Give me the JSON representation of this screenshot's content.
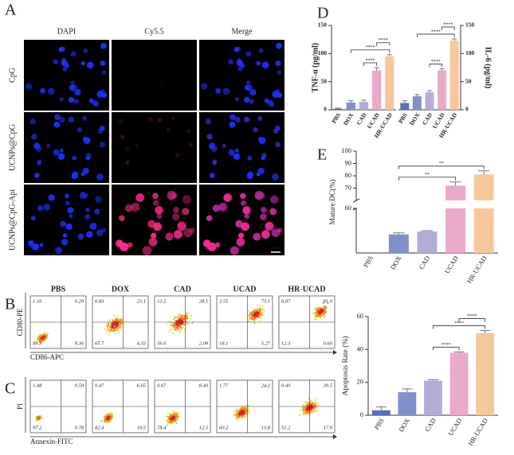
{
  "panel_labels": [
    "A",
    "B",
    "C",
    "D",
    "E",
    "F"
  ],
  "microscopy": {
    "columns": [
      "DAPI",
      "Cy5.5",
      "Merge"
    ],
    "rows": [
      "CpG",
      "UCNPs@CpG",
      "UCNPs@CpG-Apt"
    ],
    "scale_bar": "50 μm"
  },
  "flow": {
    "groups": [
      "PBS",
      "DOX",
      "CAD",
      "UCAD",
      "HR-UCAD"
    ],
    "panels": [
      {
        "y_label": "CD80-PE",
        "x_label": "CD86-APC",
        "quadrants": [
          [
            "1.16",
            "0.20",
            "89.3",
            "9.36"
          ],
          [
            "6.83",
            "23.1",
            "65.7",
            "4.33"
          ],
          [
            "13.2",
            "28.1",
            "56.6",
            "2.09"
          ],
          [
            "3.55",
            "73.1",
            "18.1",
            "5.27"
          ],
          [
            "6.07",
            "81.0",
            "12.3",
            "0.60"
          ]
        ]
      },
      {
        "y_label": "PI",
        "x_label": "Annexin-FITC",
        "quadrants": [
          [
            "1.48",
            "0.50",
            "97.2",
            "0.78"
          ],
          [
            "0.47",
            "6.65",
            "82.4",
            "10.5"
          ],
          [
            "0.67",
            "8.40",
            "78.4",
            "12.5"
          ],
          [
            "1.77",
            "24.2",
            "60.2",
            "13.8"
          ],
          [
            "0.40",
            "30.5",
            "51.2",
            "17.9"
          ]
        ]
      }
    ]
  },
  "chart_data": [
    {
      "type": "bar",
      "y_label": "TNF-α (pg/ml)",
      "y_axis": "left",
      "categories": [
        "PBS",
        "DOX",
        "CAD",
        "UCAD",
        "HR-UCAD"
      ],
      "values": [
        2,
        13,
        14,
        70,
        95
      ],
      "errors": [
        1,
        3,
        3,
        5,
        3
      ],
      "colors": [
        "#5b6db3",
        "#8290c9",
        "#b3acd9",
        "#e9a9c9",
        "#f7c79c"
      ],
      "ylim": [
        0,
        150
      ],
      "yticks": [
        0,
        50,
        100,
        150
      ],
      "brackets": [
        {
          "between": [
            "CAD",
            "UCAD"
          ],
          "label": "****"
        },
        {
          "between": [
            "DOX",
            "HR-UCAD"
          ],
          "label": "****"
        },
        {
          "between": [
            "UCAD",
            "HR-UCAD"
          ],
          "label": "****"
        }
      ]
    },
    {
      "type": "bar",
      "y_label": "IL-6 (pg/ml)",
      "y_axis": "right",
      "categories": [
        "PBS",
        "DOX",
        "CAD",
        "UCAD",
        "HR-UCAD"
      ],
      "values": [
        12,
        24,
        31,
        70,
        123
      ],
      "errors": [
        4,
        3,
        3,
        3,
        3
      ],
      "colors": [
        "#5b6db3",
        "#8290c9",
        "#b3acd9",
        "#e9a9c9",
        "#f7c79c"
      ],
      "ylim": [
        0,
        150
      ],
      "yticks": [
        0,
        50,
        100,
        150
      ],
      "brackets": [
        {
          "between": [
            "CAD",
            "UCAD"
          ],
          "label": "****"
        },
        {
          "between": [
            "DOX",
            "HR-UCAD"
          ],
          "label": "****"
        },
        {
          "between": [
            "UCAD",
            "HR-UCAD"
          ],
          "label": "****"
        }
      ]
    },
    {
      "type": "bar",
      "y_label": "Mature DC(%)",
      "y_axis": "left",
      "categories": [
        "PBS",
        "DOX",
        "CAD",
        "UCAD",
        "HR-UCAD"
      ],
      "values": [
        0,
        25,
        29,
        72,
        81
      ],
      "errors": [
        0,
        2,
        1,
        3,
        3
      ],
      "colors": [
        "#5b6db3",
        "#8290c9",
        "#b3acd9",
        "#e9a9c9",
        "#f7c79c"
      ],
      "ylim_lower": [
        0,
        60
      ],
      "ylim_upper": [
        60,
        100
      ],
      "yticks": [
        60,
        70,
        80,
        90,
        100
      ],
      "brackets": [
        {
          "between": [
            "DOX",
            "UCAD"
          ],
          "label": "**"
        },
        {
          "between": [
            "DOX",
            "HR-UCAD"
          ],
          "label": "**"
        }
      ]
    },
    {
      "type": "bar",
      "y_label": "Apoptosis Rate (%)",
      "y_axis": "left",
      "categories": [
        "PBS",
        "DOX",
        "CAD",
        "UCAD",
        "HR-UCAD"
      ],
      "values": [
        3,
        14,
        21,
        38,
        50
      ],
      "errors": [
        2,
        2,
        0.5,
        0.5,
        1.5
      ],
      "colors": [
        "#5b6db3",
        "#8290c9",
        "#b3acd9",
        "#e9a9c9",
        "#f7c79c"
      ],
      "ylim": [
        0,
        60
      ],
      "yticks": [
        0,
        20,
        40,
        60
      ],
      "brackets": [
        {
          "between": [
            "CAD",
            "UCAD"
          ],
          "label": "****"
        },
        {
          "between": [
            "CAD",
            "HR-UCAD"
          ],
          "label": "****"
        },
        {
          "between": [
            "UCAD",
            "HR-UCAD"
          ],
          "label": "****"
        }
      ]
    }
  ]
}
